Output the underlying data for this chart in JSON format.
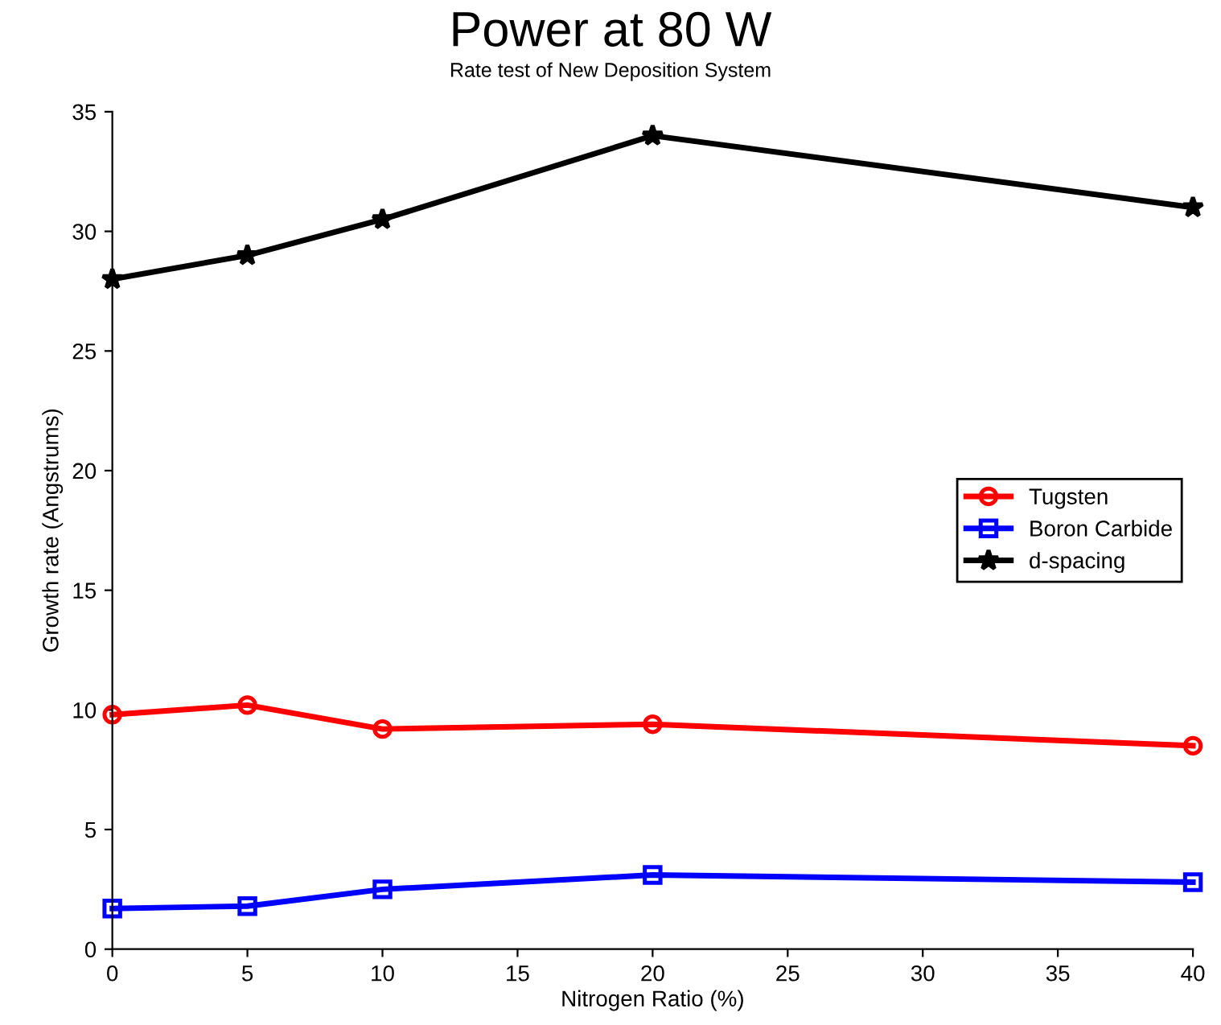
{
  "chart_data": {
    "type": "line",
    "title": "Power at 80 W",
    "subtitle": "Rate test of New Deposition System",
    "xlabel": "Nitrogen Ratio (%)",
    "ylabel": "Growth rate (Angstrums)",
    "x": [
      0,
      5,
      10,
      20,
      40
    ],
    "series": [
      {
        "name": "Tugsten",
        "color": "#ff0000",
        "marker": "circle",
        "values": [
          9.8,
          10.2,
          9.2,
          9.4,
          8.5
        ]
      },
      {
        "name": "Boron Carbide",
        "color": "#0000ff",
        "marker": "square",
        "values": [
          1.7,
          1.8,
          2.5,
          3.1,
          2.8
        ]
      },
      {
        "name": "d-spacing",
        "color": "#000000",
        "marker": "star",
        "values": [
          28.0,
          29.0,
          30.5,
          34.0,
          31.0
        ]
      }
    ],
    "xlim": [
      0,
      40
    ],
    "ylim": [
      0,
      35
    ],
    "xticks": [
      0,
      5,
      10,
      15,
      20,
      25,
      30,
      35,
      40
    ],
    "yticks": [
      0,
      5,
      10,
      15,
      20,
      25,
      30,
      35
    ],
    "grid": false,
    "legend": "right",
    "line_style": "solid"
  }
}
